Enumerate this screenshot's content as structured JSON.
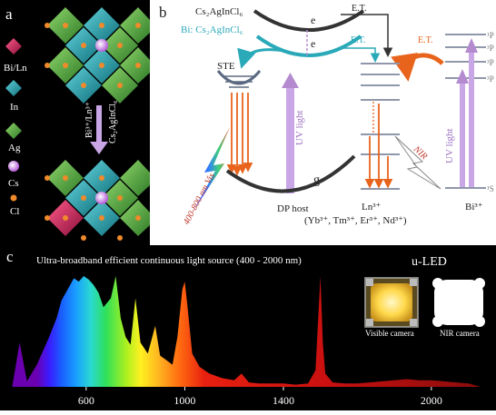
{
  "panel_a": {
    "letter": "a",
    "legend": [
      "Bi/Ln",
      "In",
      "Ag",
      "Cs",
      "Cl"
    ],
    "arrow_label": "Bi³⁺/Ln³⁺",
    "host_label": "Cs₂AgInCl₆"
  },
  "panel_b": {
    "letter": "b",
    "host_label": "Cs₂AgInCl₆",
    "bi_label": "Bi: Cs₂AgInCl₆",
    "e_upper": "e",
    "e_lower": "e",
    "et_1": "E.T.",
    "et_2": "E.T.",
    "et_3": "E.T.",
    "ste": "STE",
    "uv_left": "UV light",
    "uv_right": "UV light",
    "g": "g",
    "dp_host": "DP host",
    "vis": "400-800 nm Vis",
    "nir": "NIR",
    "ln_label": "Ln³⁺",
    "ln_list": "(Yb³⁺, Tm³⁺, Er³⁺, Nd³⁺)",
    "bi3_label": "Bi³⁺",
    "level_p_top": "¹P",
    "level_p_mid": "³P",
    "level_p_low": "³P",
    "level_p_bot": "³P",
    "level_s": "¹S",
    "colors": {
      "dark": "#333333",
      "teal": "#2aa9b8",
      "violet": "#b58bd0",
      "orange": "#e8641c",
      "level": "#8f97aa"
    }
  },
  "panel_c": {
    "letter": "c",
    "title": "Ultra-broadband efficient continuous light source (400 - 2000 nm)",
    "uled": "u-LED",
    "visible_camera": "Visible camera",
    "nir_camera": "NIR camera",
    "ticks": [
      "600",
      "1000",
      "1400",
      "2000"
    ],
    "chart_data": {
      "type": "area",
      "title": "Ultra-broadband efficient continuous light source (400 - 2000 nm)",
      "xlabel": "",
      "ylabel": "",
      "x": [
        300,
        330,
        360,
        400,
        450,
        480,
        500,
        530,
        550,
        570,
        590,
        610,
        630,
        650,
        670,
        700,
        720,
        740,
        760,
        780,
        800,
        820,
        850,
        880,
        900,
        920,
        950,
        970,
        990,
        1000,
        1010,
        1030,
        1060,
        1100,
        1150,
        1200,
        1230,
        1260,
        1300,
        1350,
        1400,
        1450,
        1500,
        1530,
        1550,
        1560,
        1570,
        1600,
        1650,
        1700,
        1750,
        1800,
        1850,
        1900,
        1950,
        2000,
        2050,
        2100,
        2150,
        2200
      ],
      "values": [
        0,
        40,
        5,
        20,
        45,
        62,
        78,
        90,
        98,
        95,
        100,
        97,
        92,
        85,
        72,
        80,
        100,
        62,
        45,
        38,
        80,
        40,
        30,
        55,
        28,
        25,
        20,
        45,
        88,
        95,
        75,
        30,
        18,
        12,
        8,
        6,
        12,
        4,
        3,
        3,
        3,
        2,
        3,
        15,
        100,
        40,
        12,
        4,
        3,
        3,
        4,
        5,
        6,
        7,
        6,
        6,
        5,
        4,
        3,
        0
      ],
      "xticks": [
        600,
        1000,
        1400,
        2000
      ],
      "xlim": [
        280,
        2240
      ]
    }
  }
}
